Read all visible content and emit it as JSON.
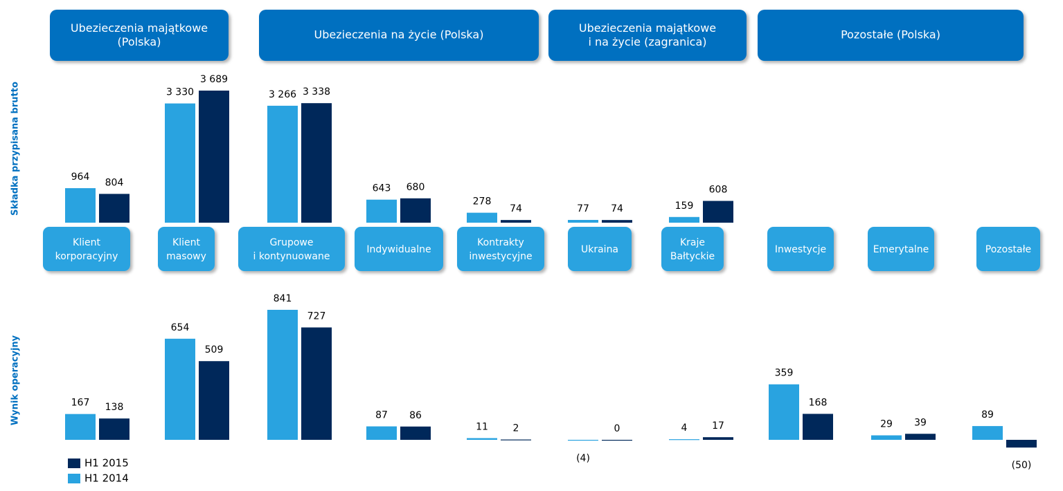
{
  "groups": [
    "Ubezieczenia majątkowe\n(Polska)",
    "Ubezieczenia na życie (Polska)",
    "Ubezieczenia majątkowe\ni na życie (zagranica)",
    "Pozostałe (Polska)"
  ],
  "chart_data": [
    {
      "type": "bar",
      "y_label": "Składka przypisana brutto",
      "categories": [
        "Klient\nkorporacyjny",
        "Klient\nmasowy",
        "Grupowe\ni kontynuowane",
        "Indywidualne",
        "Kontrakty\ninwestycyjne",
        "Ukraina",
        "Kraje\nBałtyckie",
        "Inwestycje",
        "Emerytalne",
        "Pozostałe"
      ],
      "series": [
        {
          "name": "H1 2014",
          "color": "#29a3e0",
          "values": [
            964,
            3330,
            3266,
            643,
            278,
            77,
            159,
            null,
            null,
            null
          ],
          "value_labels": [
            "964",
            "3 330",
            "3 266",
            "643",
            "278",
            "77",
            "159",
            null,
            null,
            null
          ]
        },
        {
          "name": "H1 2015",
          "color": "#00285a",
          "values": [
            804,
            3689,
            3338,
            680,
            74,
            74,
            608,
            null,
            null,
            null
          ],
          "value_labels": [
            "804",
            "3 689",
            "3 338",
            "680",
            "74",
            "74",
            "608",
            null,
            null,
            null
          ]
        }
      ]
    },
    {
      "type": "bar",
      "y_label": "Wynik operacyjny",
      "series": [
        {
          "color": "#29a3e0",
          "values": [
            167,
            654,
            841,
            87,
            11,
            -4,
            4,
            359,
            29,
            89
          ],
          "value_labels": [
            "167",
            "654",
            "841",
            "87",
            "11",
            "(4)",
            "4",
            "359",
            "29",
            "89"
          ]
        },
        {
          "color": "#00285a",
          "values": [
            138,
            509,
            727,
            86,
            2,
            0,
            17,
            168,
            39,
            -50
          ],
          "value_labels": [
            "138",
            "509",
            "727",
            "86",
            "2",
            "0",
            "17",
            "168",
            "39",
            "(50)"
          ]
        }
      ]
    }
  ]
}
